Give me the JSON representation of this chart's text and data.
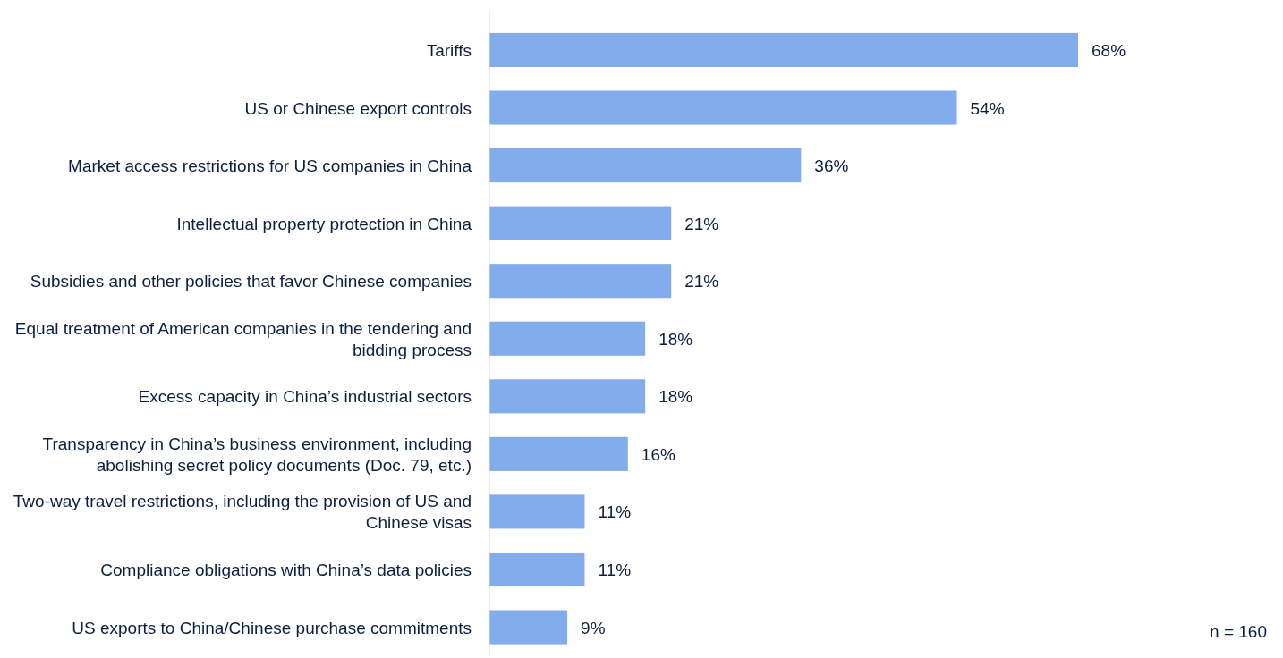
{
  "chart_data": {
    "type": "bar",
    "orientation": "horizontal",
    "categories": [
      "Tariffs",
      "US or Chinese export controls",
      "Market access restrictions for US companies in China",
      "Intellectual property protection in China",
      "Subsidies and other policies that favor Chinese companies",
      "Equal treatment of American companies in the tendering and bidding process",
      "Excess capacity in China’s industrial sectors",
      "Transparency in China’s business environment, including abolishing secret policy documents (Doc. 79, etc.)",
      "Two-way travel restrictions, including the provision of US and Chinese visas",
      "Compliance obligations with China’s data policies",
      "US exports to China/Chinese purchase commitments"
    ],
    "values": [
      68,
      54,
      36,
      21,
      21,
      18,
      18,
      16,
      11,
      11,
      9
    ],
    "value_labels": [
      "68%",
      "54%",
      "36%",
      "21%",
      "21%",
      "18%",
      "18%",
      "16%",
      "11%",
      "11%",
      "9%"
    ],
    "color": "#82acec",
    "annotations": [
      "n = 160"
    ]
  }
}
